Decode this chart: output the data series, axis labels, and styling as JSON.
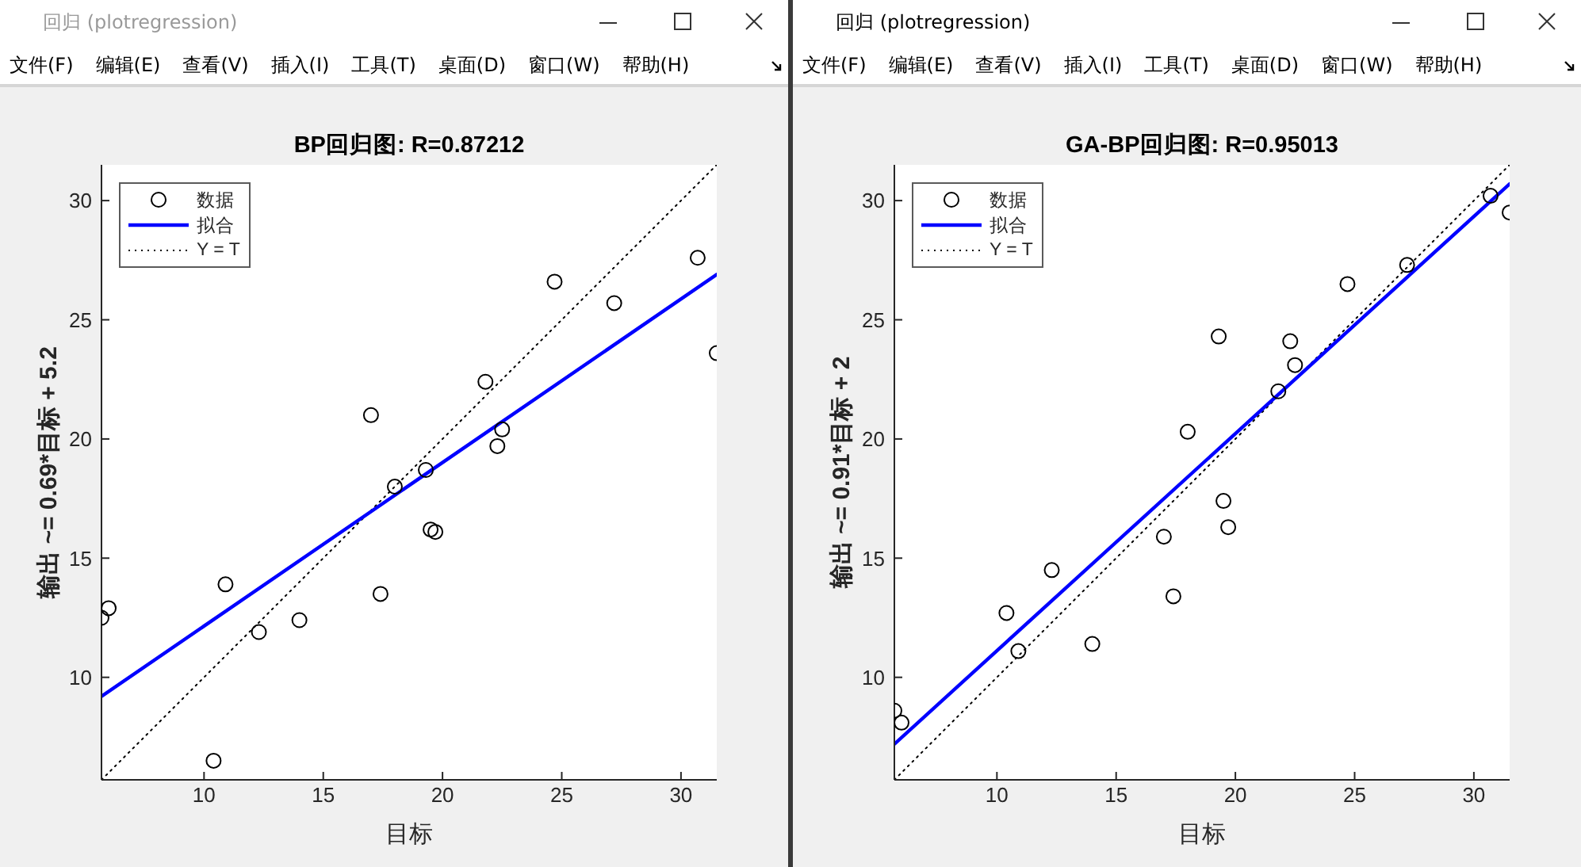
{
  "chart_data": [
    {
      "type": "scatter",
      "title": "BP回归图: R=0.87212",
      "xlabel": "目标",
      "ylabel": "输出 ~= 0.69*目标 + 5.2",
      "annotations": [
        "回归 (plotregression)",
        "文件(F)",
        "编辑(E)",
        "查看(V)",
        "插入(I)",
        "工具(T)",
        "桌面(D)",
        "窗口(W)",
        "帮助(H)"
      ],
      "xlim": [
        5.7,
        31.5
      ],
      "ylim": [
        5.7,
        31.5
      ],
      "xticks": [
        10,
        15,
        20,
        25,
        30
      ],
      "yticks": [
        10,
        15,
        20,
        25,
        30
      ],
      "legend": "top left",
      "series": [
        {
          "name": "数据",
          "color": "#000000",
          "marker": "circle",
          "x": [
            5.7,
            6.0,
            10.4,
            10.9,
            12.3,
            14.0,
            17.0,
            17.4,
            18.0,
            19.3,
            19.5,
            19.7,
            21.8,
            22.3,
            22.5,
            24.7,
            27.2,
            30.7,
            31.5
          ],
          "values": [
            12.5,
            12.9,
            6.5,
            13.9,
            11.9,
            12.4,
            21.0,
            13.5,
            18.0,
            18.7,
            16.2,
            16.1,
            22.4,
            19.7,
            20.4,
            26.6,
            25.7,
            27.6,
            23.6
          ]
        },
        {
          "name": "拟合",
          "type": "line",
          "color": "#0000ff",
          "line_style": "solid",
          "marker": "none",
          "x": [
            5.7,
            31.5
          ],
          "values": [
            9.2,
            26.9
          ]
        },
        {
          "name": "Y = T",
          "type": "line",
          "color": "#000000",
          "line_style": "dotted",
          "marker": "none",
          "x": [
            5.7,
            31.5
          ],
          "values": [
            5.7,
            31.5
          ]
        }
      ]
    },
    {
      "type": "scatter",
      "title": "GA-BP回归图: R=0.95013",
      "xlabel": "目标",
      "ylabel": "输出 ~= 0.91*目标 + 2",
      "annotations": [
        "回归 (plotregression)",
        "文件(F)",
        "编辑(E)",
        "查看(V)",
        "插入(I)",
        "工具(T)",
        "桌面(D)",
        "窗口(W)",
        "帮助(H)"
      ],
      "xlim": [
        5.7,
        31.5
      ],
      "ylim": [
        5.7,
        31.5
      ],
      "xticks": [
        10,
        15,
        20,
        25,
        30
      ],
      "yticks": [
        10,
        15,
        20,
        25,
        30
      ],
      "legend": "top left",
      "series": [
        {
          "name": "数据",
          "color": "#000000",
          "marker": "circle",
          "x": [
            5.7,
            6.0,
            10.4,
            10.9,
            12.3,
            14.0,
            17.0,
            17.4,
            18.0,
            19.3,
            19.5,
            19.7,
            21.8,
            22.3,
            22.5,
            24.7,
            27.2,
            30.7,
            31.5
          ],
          "values": [
            8.6,
            8.1,
            12.7,
            11.1,
            14.5,
            11.4,
            15.9,
            13.4,
            20.3,
            24.3,
            17.4,
            16.3,
            22.0,
            24.1,
            23.1,
            26.5,
            27.3,
            30.2,
            29.5
          ]
        },
        {
          "name": "拟合",
          "type": "line",
          "color": "#0000ff",
          "line_style": "solid",
          "marker": "none",
          "x": [
            5.7,
            31.5
          ],
          "values": [
            7.2,
            30.7
          ]
        },
        {
          "name": "Y = T",
          "type": "line",
          "color": "#000000",
          "line_style": "dotted",
          "marker": "none",
          "x": [
            5.7,
            31.5
          ],
          "values": [
            5.7,
            31.5
          ]
        }
      ]
    }
  ]
}
